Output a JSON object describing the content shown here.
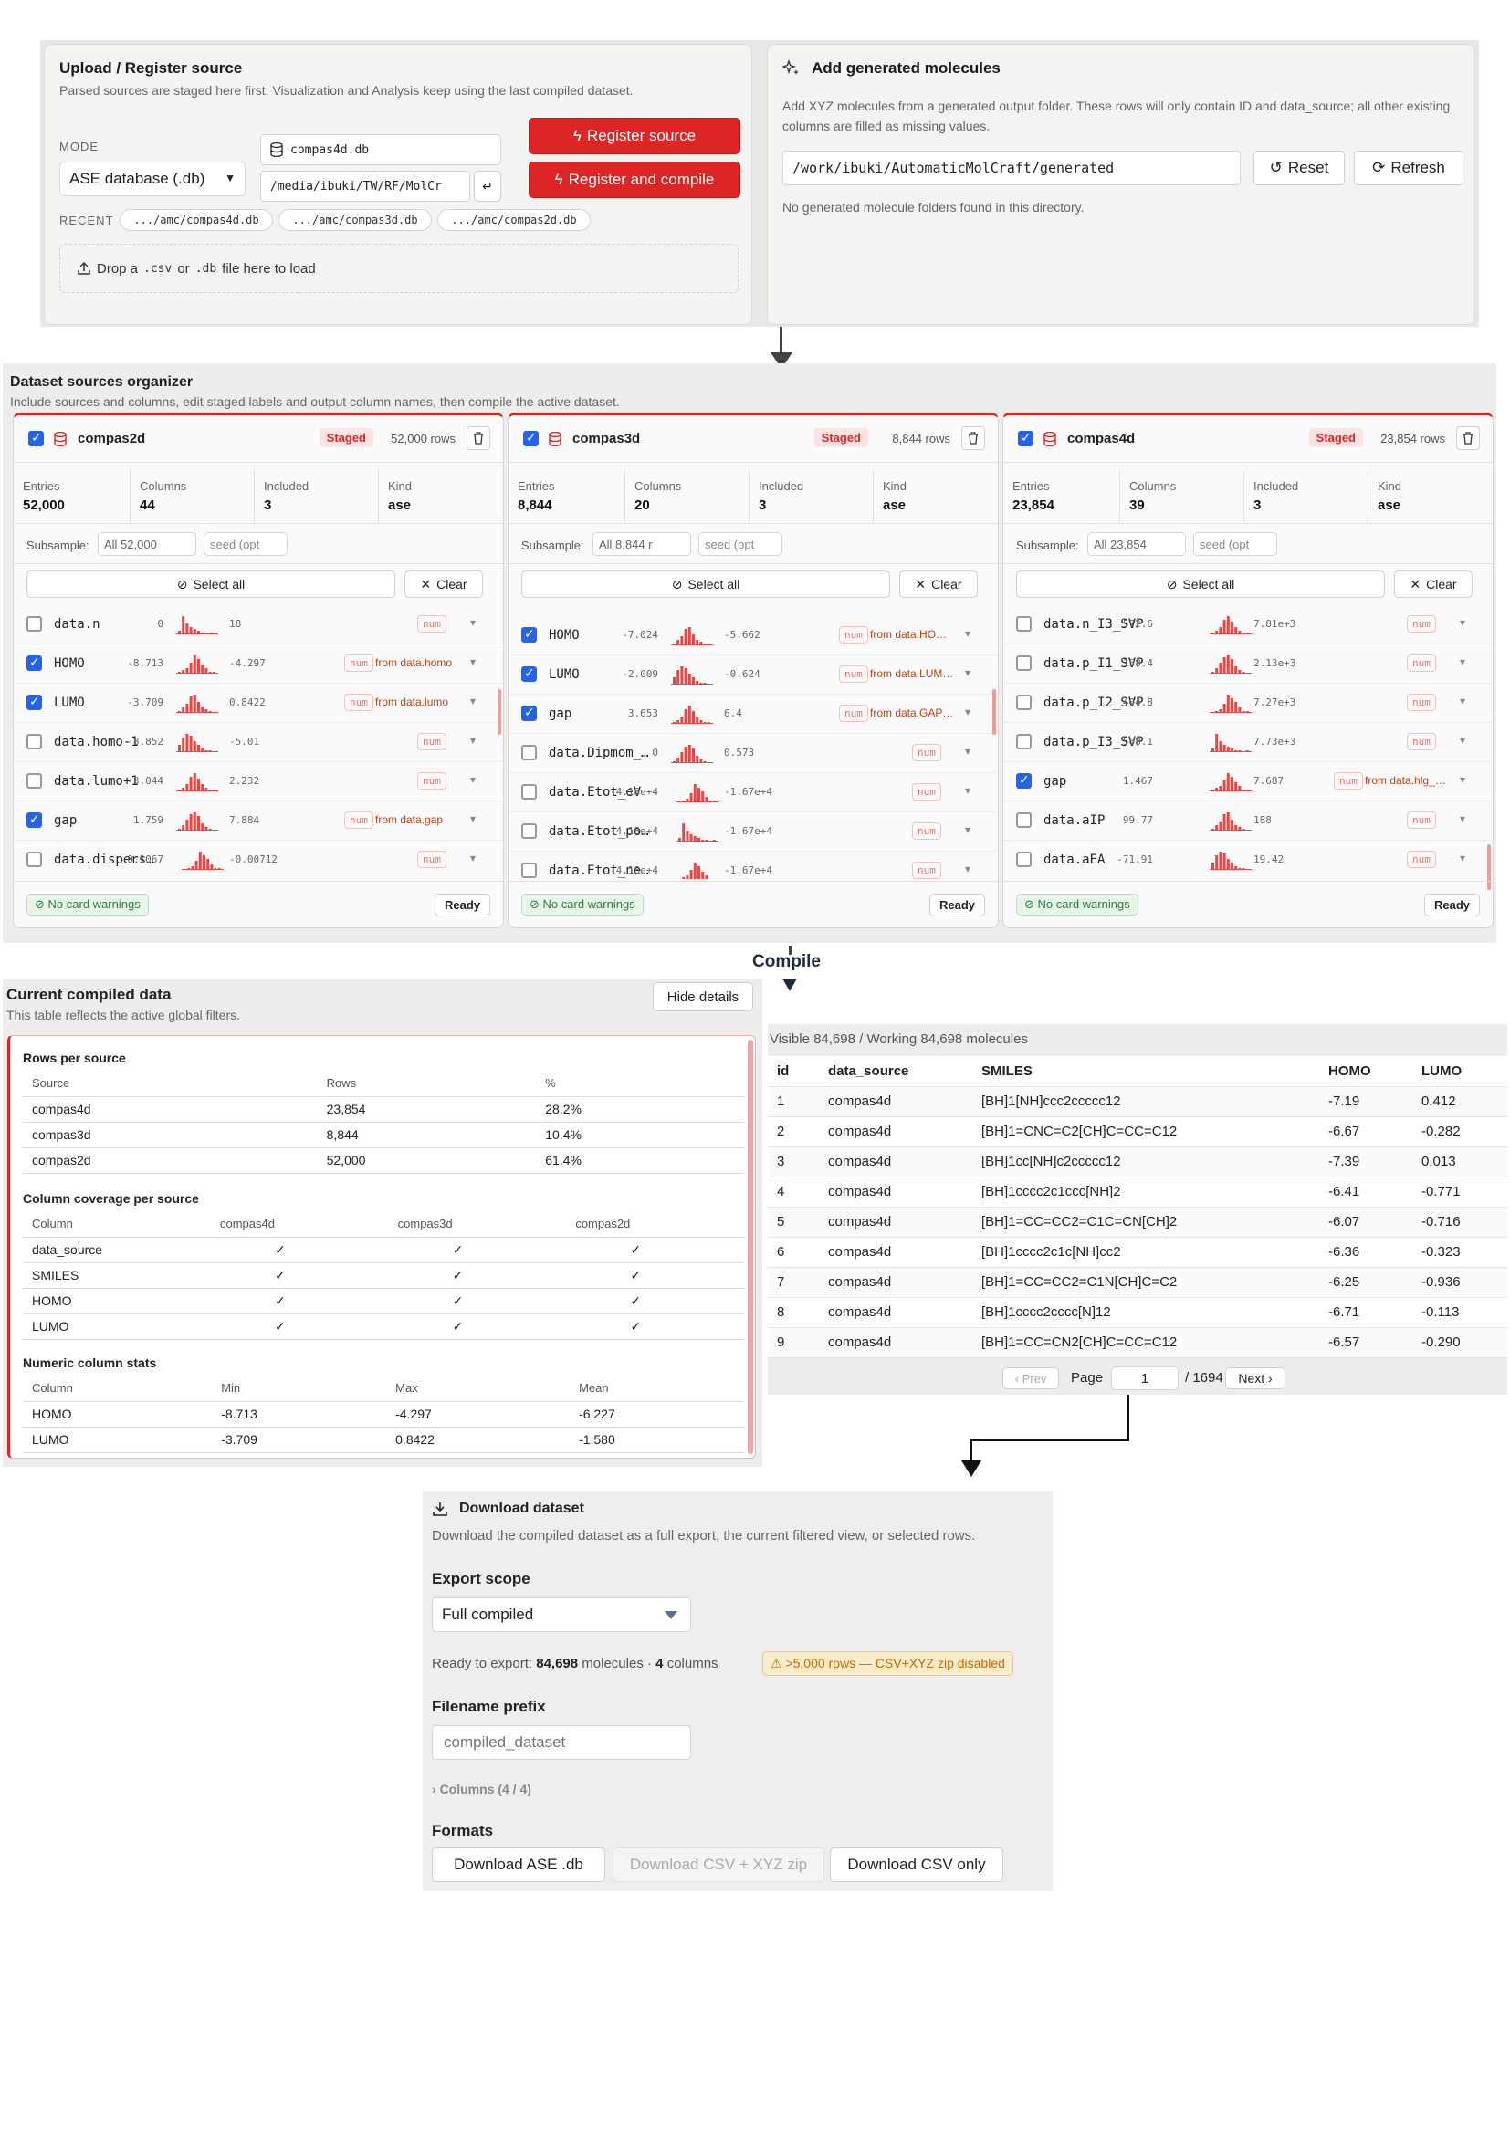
{
  "upload": {
    "title": "Upload / Register source",
    "subtitle": "Parsed sources are staged here first. Visualization and Analysis keep using the last compiled dataset.",
    "mode_label": "MODE",
    "mode_value": "ASE database (.db)",
    "file_name": "compas4d.db",
    "path": "/media/ibuki/TW/RF/MolCr",
    "register_label": "Register source",
    "register_compile_label": "Register and compile",
    "recent_label": "RECENT",
    "recent": [
      ".../amc/compas4d.db",
      ".../amc/compas3d.db",
      ".../amc/compas2d.db"
    ],
    "drop_text_1": "Drop a",
    "drop_csv": ".csv",
    "drop_or": "or",
    "drop_db": ".db",
    "drop_text_2": "file here to load"
  },
  "generated": {
    "title": "Add generated molecules",
    "description": "Add XYZ molecules from a generated output folder. These rows will only contain ID and data_source; all other existing columns are filled as missing values.",
    "path": "/work/ibuki/AutomaticMolCraft/generated",
    "reset_label": "Reset",
    "refresh_label": "Refresh",
    "empty_text": "No generated molecule folders found in this directory."
  },
  "organizer": {
    "title": "Dataset sources organizer",
    "subtitle": "Include sources and columns, edit staged labels and output column names, then compile the active dataset.",
    "labels": {
      "staged": "Staged",
      "entries": "Entries",
      "columns": "Columns",
      "included": "Included",
      "kind": "Kind",
      "subsample": "Subsample:",
      "seed": "seed (opt",
      "select_all": "Select all",
      "clear": "Clear",
      "no_warnings": "No card warnings",
      "ready": "Ready",
      "num": "num"
    },
    "cards": [
      {
        "name": "compas2d",
        "rows": "52,000 rows",
        "entries": "52,000",
        "columns": "44",
        "included": "3",
        "kind": "ase",
        "subsample": "All 52,000",
        "cols": [
          {
            "name": "data.n",
            "min": "0",
            "max": "18",
            "on": false,
            "from": ""
          },
          {
            "name": "HOMO",
            "min": "-8.713",
            "max": "-4.297",
            "on": true,
            "from": "from data.homo"
          },
          {
            "name": "LUMO",
            "min": "-3.709",
            "max": "0.8422",
            "on": true,
            "from": "from data.lumo"
          },
          {
            "name": "data.homo-1",
            "min": "-8.852",
            "max": "-5.01",
            "on": false,
            "from": ""
          },
          {
            "name": "data.lumo+1",
            "min": "-3.044",
            "max": "2.232",
            "on": false,
            "from": ""
          },
          {
            "name": "gap",
            "min": "1.759",
            "max": "7.884",
            "on": true,
            "from": "from data.gap"
          },
          {
            "name": "data.dispers…",
            "min": "-0.1067",
            "max": "-0.00712",
            "on": false,
            "from": ""
          }
        ]
      },
      {
        "name": "compas3d",
        "rows": "8,844 rows",
        "entries": "8,844",
        "columns": "20",
        "included": "3",
        "kind": "ase",
        "subsample": "All 8,844 r",
        "cols": [
          {
            "name": "HOMO",
            "min": "-7.024",
            "max": "-5.662",
            "on": true,
            "from": "from data.HO…"
          },
          {
            "name": "LUMO",
            "min": "-2.009",
            "max": "-0.624",
            "on": true,
            "from": "from data.LUM…"
          },
          {
            "name": "gap",
            "min": "3.653",
            "max": "6.4",
            "on": true,
            "from": "from data.GAP…"
          },
          {
            "name": "data.Dipmom_…",
            "min": "0",
            "max": "0.573",
            "on": false,
            "from": ""
          },
          {
            "name": "data.Etot_eV",
            "min": "-4.18e+4",
            "max": "-1.67e+4",
            "on": false,
            "from": ""
          },
          {
            "name": "data.Etot_po…",
            "min": "-4.18e+4",
            "max": "-1.67e+4",
            "on": false,
            "from": ""
          },
          {
            "name": "data.Etot_ne…",
            "min": "-4.18e+4",
            "max": "-1.67e+4",
            "on": false,
            "from": ""
          }
        ]
      },
      {
        "name": "compas4d",
        "rows": "23,854 rows",
        "entries": "23,854",
        "columns": "39",
        "included": "3",
        "kind": "ase",
        "subsample": "All 23,854",
        "cols": [
          {
            "name": "data.n_I3_SVP",
            "min": "572.6",
            "max": "7.81e+3",
            "on": false,
            "from": ""
          },
          {
            "name": "data.p_I1_SVP",
            "min": "158.4",
            "max": "2.13e+3",
            "on": false,
            "from": ""
          },
          {
            "name": "data.p_I2_SVP",
            "min": "404.8",
            "max": "7.27e+3",
            "on": false,
            "from": ""
          },
          {
            "name": "data.p_I3_SVP",
            "min": "568.1",
            "max": "7.73e+3",
            "on": false,
            "from": ""
          },
          {
            "name": "gap",
            "min": "1.467",
            "max": "7.687",
            "on": true,
            "from": "from data.hlg_…"
          },
          {
            "name": "data.aIP",
            "min": "99.77",
            "max": "188",
            "on": false,
            "from": ""
          },
          {
            "name": "data.aEA",
            "min": "-71.91",
            "max": "19.42",
            "on": false,
            "from": ""
          }
        ]
      }
    ]
  },
  "compile_label": "Compile",
  "compiled": {
    "title": "Current compiled data",
    "subtitle": "This table reflects the active global filters.",
    "hide_label": "Hide details",
    "rows_title": "Rows per source",
    "rows_headers": [
      "Source",
      "Rows",
      "%"
    ],
    "rows": [
      [
        "compas4d",
        "23,854",
        "28.2%"
      ],
      [
        "compas3d",
        "8,844",
        "10.4%"
      ],
      [
        "compas2d",
        "52,000",
        "61.4%"
      ]
    ],
    "coverage_title": "Column coverage per source",
    "coverage_headers": [
      "Column",
      "compas4d",
      "compas3d",
      "compas2d"
    ],
    "coverage": [
      [
        "data_source",
        "✓",
        "✓",
        "✓"
      ],
      [
        "SMILES",
        "✓",
        "✓",
        "✓"
      ],
      [
        "HOMO",
        "✓",
        "✓",
        "✓"
      ],
      [
        "LUMO",
        "✓",
        "✓",
        "✓"
      ]
    ],
    "stats_title": "Numeric column stats",
    "stats_headers": [
      "Column",
      "Min",
      "Max",
      "Mean"
    ],
    "stats": [
      [
        "HOMO",
        "-8.713",
        "-4.297",
        "-6.227"
      ],
      [
        "LUMO",
        "-3.709",
        "0.8422",
        "-1.580"
      ]
    ]
  },
  "preview": {
    "summary": "Visible 84,698 / Working 84,698 molecules",
    "headers": [
      "id",
      "data_source",
      "SMILES",
      "HOMO",
      "LUMO"
    ],
    "rows": [
      [
        "1",
        "compas4d",
        "[BH]1[NH]ccc2ccccc12",
        "-7.19",
        "0.412"
      ],
      [
        "2",
        "compas4d",
        "[BH]1=CNC=C2[CH]C=CC=C12",
        "-6.67",
        "-0.282"
      ],
      [
        "3",
        "compas4d",
        "[BH]1cc[NH]c2ccccc12",
        "-7.39",
        "0.013"
      ],
      [
        "4",
        "compas4d",
        "[BH]1cccc2c1ccc[NH]2",
        "-6.41",
        "-0.771"
      ],
      [
        "5",
        "compas4d",
        "[BH]1=CC=CC2=C1C=CN[CH]2",
        "-6.07",
        "-0.716"
      ],
      [
        "6",
        "compas4d",
        "[BH]1cccc2c1c[NH]cc2",
        "-6.36",
        "-0.323"
      ],
      [
        "7",
        "compas4d",
        "[BH]1=CC=CC2=C1N[CH]C=C2",
        "-6.25",
        "-0.936"
      ],
      [
        "8",
        "compas4d",
        "[BH]1cccc2cccc[N]12",
        "-6.71",
        "-0.113"
      ],
      [
        "9",
        "compas4d",
        "[BH]1=CC=CN2[CH]C=CC=C12",
        "-6.57",
        "-0.290"
      ]
    ],
    "prev_label": "‹ Prev",
    "page_label": "Page",
    "page_value": "1",
    "page_total": "/ 1694",
    "next_label": "Next ›"
  },
  "download": {
    "title": "Download dataset",
    "subtitle": "Download the compiled dataset as a full export, the current filtered view, or selected rows.",
    "scope_label": "Export scope",
    "scope_value": "Full compiled",
    "ready_prefix": "Ready to export:",
    "ready_molecules": "84,698",
    "ready_mid": "molecules ·",
    "ready_columns": "4",
    "ready_suffix": "columns",
    "warning": "⚠ >5,000 rows — CSV+XYZ zip disabled",
    "prefix_label": "Filename prefix",
    "prefix_placeholder": "compiled_dataset",
    "columns_toggle": "Columns (4 / 4)",
    "formats_label": "Formats",
    "btn_db": "Download ASE .db",
    "btn_zip": "Download CSV + XYZ zip",
    "btn_csv": "Download CSV only"
  }
}
